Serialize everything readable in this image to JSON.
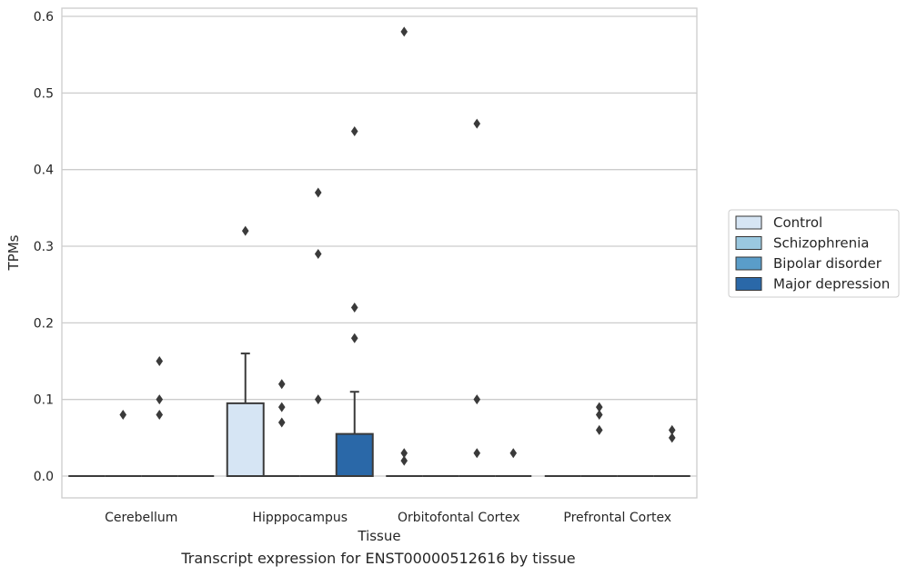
{
  "chart_data": {
    "type": "box",
    "xlabel": "Tissue",
    "ylabel": "TPMs",
    "caption": "Transcript expression for ENST00000512616 by tissue",
    "ylim": [
      -0.03,
      0.61
    ],
    "yticks": [
      0.0,
      0.1,
      0.2,
      0.3,
      0.4,
      0.5,
      0.6
    ],
    "ytick_labels": [
      "0.0",
      "0.1",
      "0.2",
      "0.3",
      "0.4",
      "0.5",
      "0.6"
    ],
    "grid": "horizontal",
    "legend_position": "right",
    "categories": [
      "Cerebellum",
      "Hipppocampus",
      "Orbitofontal Cortex",
      "Prefrontal Cortex"
    ],
    "series": [
      {
        "name": "Control",
        "color": "#d6e5f4",
        "boxes": [
          {
            "q1": 0,
            "median": 0,
            "q3": 0,
            "whisker_low": 0,
            "whisker_high": 0,
            "outliers": []
          },
          {
            "q1": 0,
            "median": 0,
            "q3": 0.095,
            "whisker_low": 0,
            "whisker_high": 0.16,
            "outliers": [
              0.32
            ]
          },
          {
            "q1": 0,
            "median": 0,
            "q3": 0,
            "whisker_low": 0,
            "whisker_high": 0,
            "outliers": [
              0.58,
              0.03,
              0.02
            ]
          },
          {
            "q1": 0,
            "median": 0,
            "q3": 0,
            "whisker_low": 0,
            "whisker_high": 0,
            "outliers": []
          }
        ]
      },
      {
        "name": "Schizophrenia",
        "color": "#9ac8e0",
        "boxes": [
          {
            "q1": 0,
            "median": 0,
            "q3": 0,
            "whisker_low": 0,
            "whisker_high": 0,
            "outliers": [
              0.08
            ]
          },
          {
            "q1": 0,
            "median": 0,
            "q3": 0,
            "whisker_low": 0,
            "whisker_high": 0,
            "outliers": [
              0.12,
              0.09,
              0.07
            ]
          },
          {
            "q1": 0,
            "median": 0,
            "q3": 0,
            "whisker_low": 0,
            "whisker_high": 0,
            "outliers": []
          },
          {
            "q1": 0,
            "median": 0,
            "q3": 0,
            "whisker_low": 0,
            "whisker_high": 0,
            "outliers": [
              0.09,
              0.08,
              0.06
            ]
          }
        ]
      },
      {
        "name": "Bipolar disorder",
        "color": "#5a9dc9",
        "boxes": [
          {
            "q1": 0,
            "median": 0,
            "q3": 0,
            "whisker_low": 0,
            "whisker_high": 0,
            "outliers": [
              0.15,
              0.1,
              0.08
            ]
          },
          {
            "q1": 0,
            "median": 0,
            "q3": 0,
            "whisker_low": 0,
            "whisker_high": 0,
            "outliers": [
              0.37,
              0.29,
              0.1
            ]
          },
          {
            "q1": 0,
            "median": 0,
            "q3": 0,
            "whisker_low": 0,
            "whisker_high": 0,
            "outliers": [
              0.46,
              0.1,
              0.03
            ]
          },
          {
            "q1": 0,
            "median": 0,
            "q3": 0,
            "whisker_low": 0,
            "whisker_high": 0,
            "outliers": []
          }
        ]
      },
      {
        "name": "Major depression",
        "color": "#2a68a8",
        "boxes": [
          {
            "q1": 0,
            "median": 0,
            "q3": 0,
            "whisker_low": 0,
            "whisker_high": 0,
            "outliers": []
          },
          {
            "q1": 0,
            "median": 0,
            "q3": 0.055,
            "whisker_low": 0,
            "whisker_high": 0.11,
            "outliers": [
              0.45,
              0.22,
              0.18
            ]
          },
          {
            "q1": 0,
            "median": 0,
            "q3": 0,
            "whisker_low": 0,
            "whisker_high": 0,
            "outliers": [
              0.03
            ]
          },
          {
            "q1": 0,
            "median": 0,
            "q3": 0,
            "whisker_low": 0,
            "whisker_high": 0,
            "outliers": [
              0.06,
              0.05
            ]
          }
        ]
      }
    ]
  }
}
